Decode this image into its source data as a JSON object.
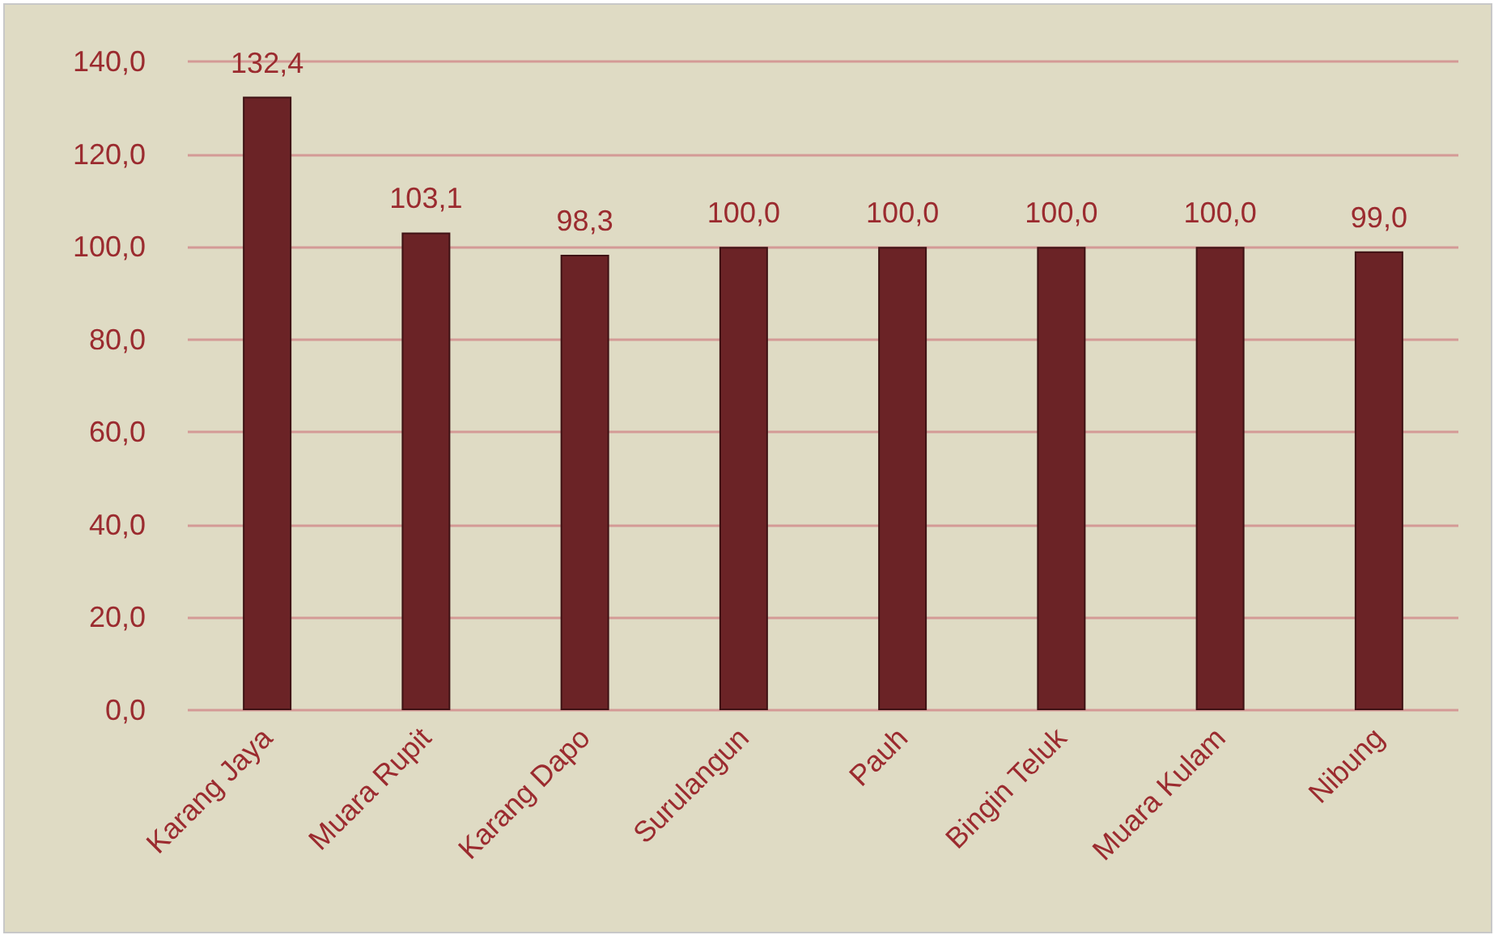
{
  "chart_data": {
    "type": "bar",
    "categories": [
      "Karang Jaya",
      "Muara Rupit",
      "Karang Dapo",
      "Surulangun",
      "Pauh",
      "Bingin Teluk",
      "Muara Kulam",
      "Nibung"
    ],
    "values": [
      132.4,
      103.1,
      98.3,
      100.0,
      100.0,
      100.0,
      100.0,
      99.0
    ],
    "value_labels": [
      "132,4",
      "103,1",
      "98,3",
      "100,0",
      "100,0",
      "100,0",
      "100,0",
      "99,0"
    ],
    "color": "#6b2326",
    "ylim": [
      0,
      140
    ],
    "yticks": [
      {
        "value": 0,
        "label": "0,0"
      },
      {
        "value": 20,
        "label": "20,0"
      },
      {
        "value": 40,
        "label": "40,0"
      },
      {
        "value": 60,
        "label": "60,0"
      },
      {
        "value": 80,
        "label": "80,0"
      },
      {
        "value": 100,
        "label": "100,0"
      },
      {
        "value": 120,
        "label": "120,0"
      },
      {
        "value": 140,
        "label": "140,0"
      }
    ],
    "grid": "y"
  }
}
